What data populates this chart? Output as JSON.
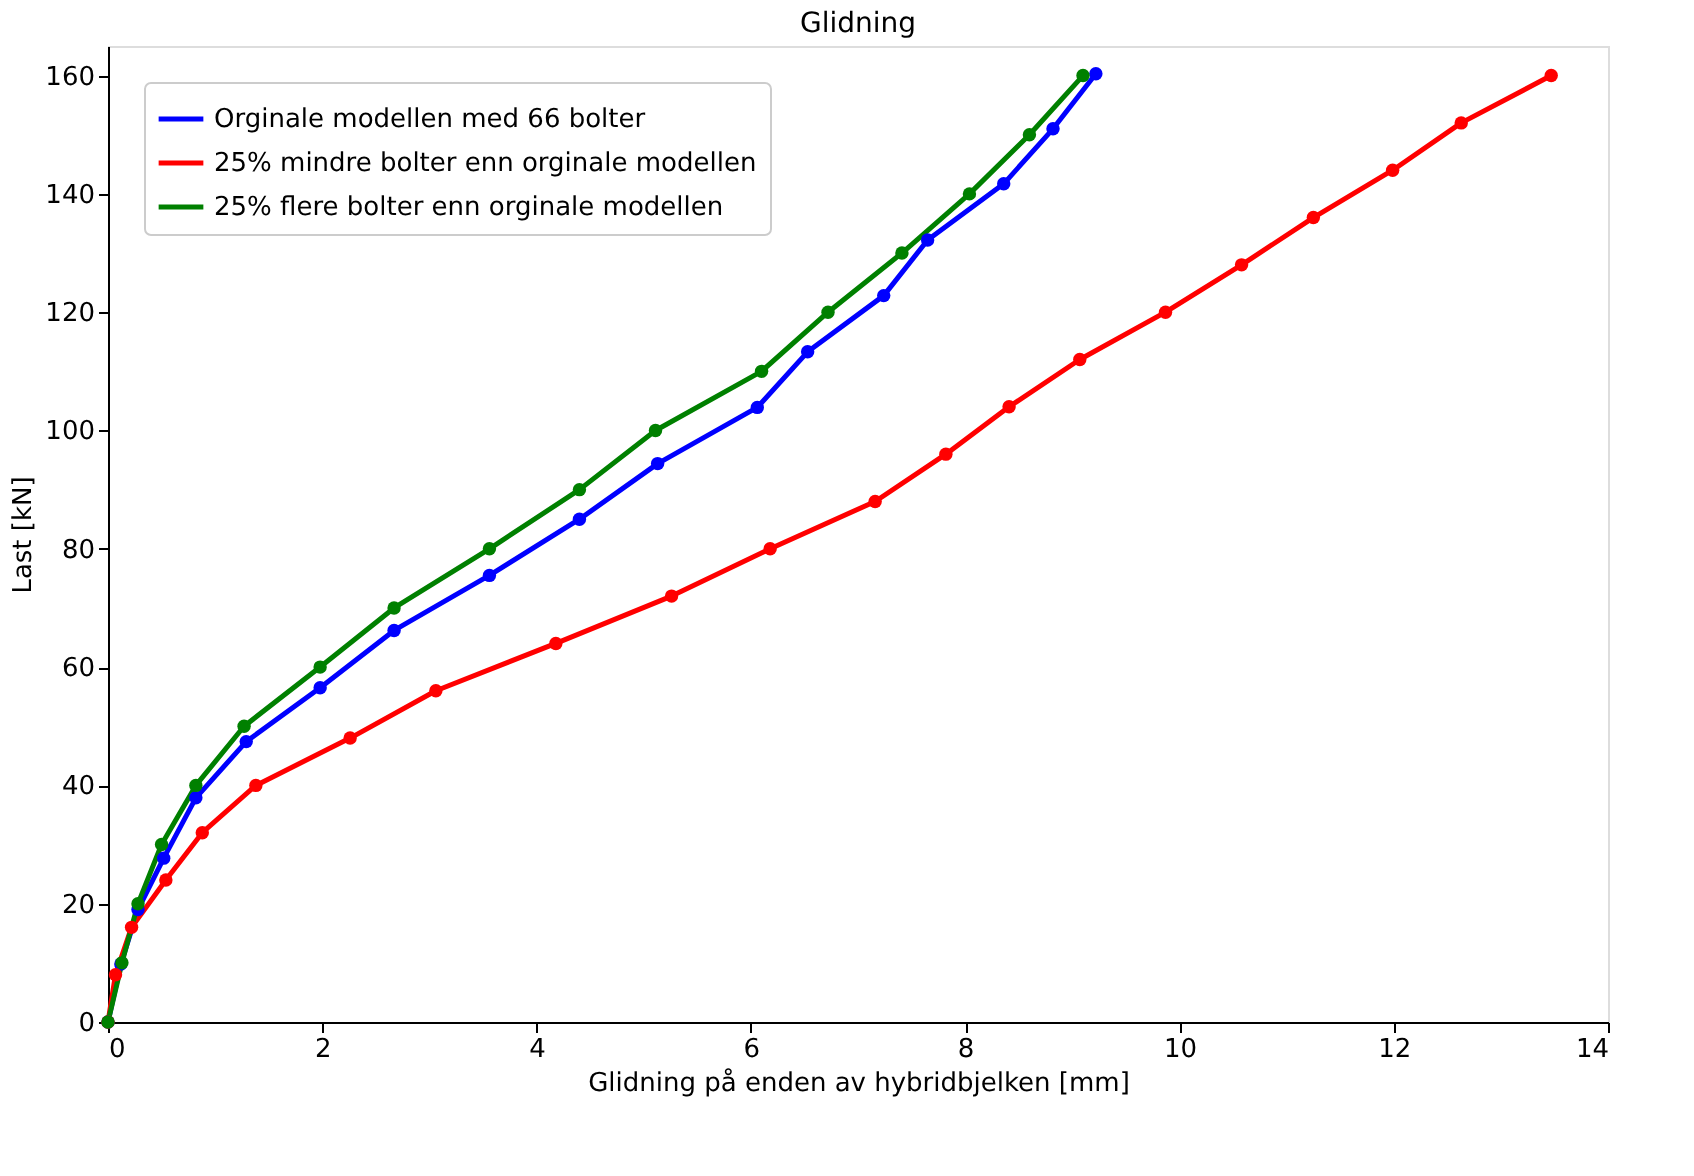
{
  "chart_data": {
    "type": "line",
    "title": "Glidning",
    "xlabel": "Glidning på enden av hybridbjelken [mm]",
    "ylabel": "Last [kN]",
    "xlim": [
      0,
      14
    ],
    "xticks": [
      0,
      2,
      4,
      6,
      8,
      10,
      12,
      14
    ],
    "ylim": [
      0,
      165
    ],
    "yticks": [
      0,
      20,
      40,
      60,
      80,
      100,
      120,
      140,
      160
    ],
    "grid": false,
    "legend": "top left",
    "marker": "circle",
    "line_style": "solid",
    "series": [
      {
        "name": "Orginale modellen med 66 bolter",
        "color": "#0000ff",
        "x": [
          0,
          0.12,
          0.28,
          0.52,
          0.82,
          1.29,
          1.98,
          2.67,
          3.56,
          4.4,
          5.13,
          6.06,
          6.53,
          7.24,
          7.65,
          8.36,
          8.82,
          9.22
        ],
        "values": [
          0,
          9.8,
          19,
          27.7,
          37.9,
          47.4,
          56.5,
          66.2,
          75.5,
          85,
          94.4,
          103.9,
          113.3,
          122.8,
          132.2,
          141.7,
          151,
          160.3
        ]
      },
      {
        "name": "25% mindre bolter enn orginale modellen",
        "color": "#ff0000",
        "x": [
          0,
          0.07,
          0.22,
          0.54,
          0.88,
          1.38,
          2.26,
          3.06,
          4.18,
          5.26,
          6.18,
          7.16,
          7.82,
          8.41,
          9.07,
          9.87,
          10.58,
          11.25,
          11.99,
          12.63,
          13.47
        ],
        "values": [
          0,
          8,
          16,
          24,
          32,
          40,
          48,
          56,
          64,
          72,
          80,
          88,
          96,
          104,
          112,
          120,
          128,
          136,
          144,
          152,
          160
        ]
      },
      {
        "name": "25% flere bolter enn orginale modellen",
        "color": "#008000",
        "x": [
          0,
          0.13,
          0.28,
          0.5,
          0.82,
          1.27,
          1.98,
          2.67,
          3.56,
          4.4,
          5.11,
          6.1,
          6.72,
          7.41,
          8.04,
          8.6,
          9.1
        ],
        "values": [
          0,
          10,
          20,
          30,
          40,
          50,
          60,
          70,
          80,
          90,
          100,
          110,
          120,
          130,
          140,
          150,
          160
        ]
      }
    ]
  }
}
